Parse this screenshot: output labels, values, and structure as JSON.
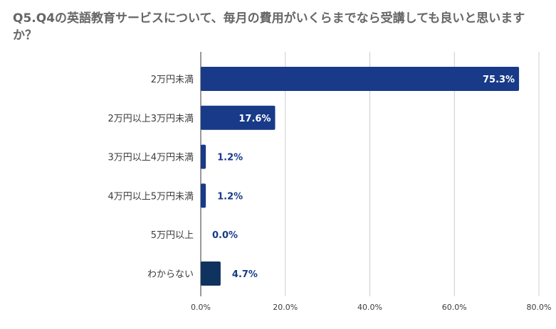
{
  "chart_data": {
    "type": "bar",
    "orientation": "horizontal",
    "title": "Q5.Q4の英語教育サービスについて、毎月の費用がいくらまでなら受講しても良いと思いますか？",
    "categories": [
      "2万円未満",
      "2万円以上3万円未満",
      "3万円以上4万円未満",
      "4万円以上5万円未満",
      "5万円以上",
      "わからない"
    ],
    "values": [
      75.3,
      17.6,
      1.2,
      1.2,
      0.0,
      4.7
    ],
    "value_labels": [
      "75.3%",
      "17.6%",
      "1.2%",
      "1.2%",
      "0.0%",
      "4.7%"
    ],
    "xlim": [
      0,
      80
    ],
    "x_ticks": [
      0,
      20,
      40,
      60,
      80
    ],
    "x_tick_labels": [
      "0.0%",
      "20.0%",
      "40.0%",
      "60.0%",
      "80.0%"
    ],
    "grid": "vertical",
    "legend": "none",
    "colors": {
      "bar": "#183a88",
      "bar_last": "#10325f",
      "grid": "#cccccc",
      "label_outside": "#183a88",
      "label_inside": "#ffffff"
    }
  }
}
